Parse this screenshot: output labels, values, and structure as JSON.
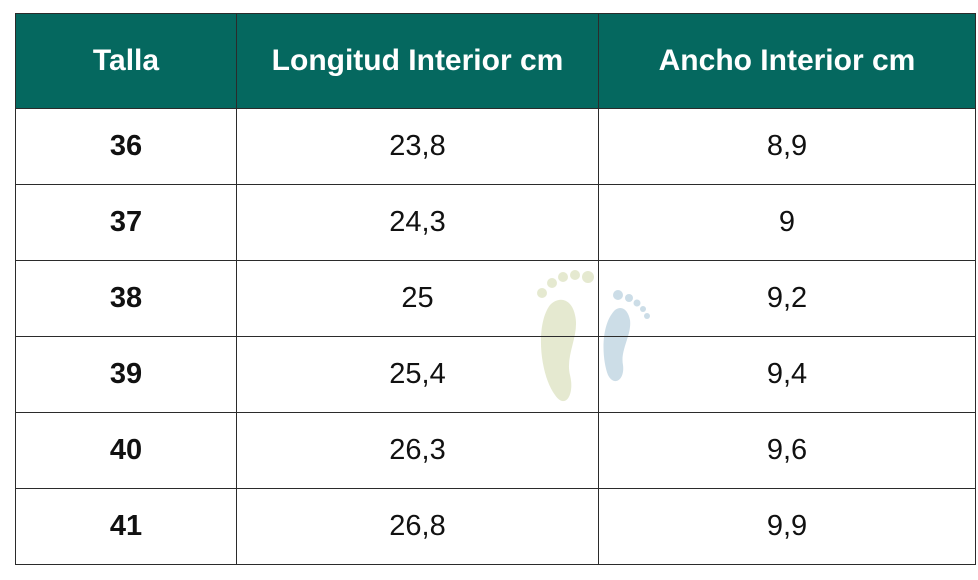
{
  "table": {
    "header": [
      "Talla",
      "Longitud Interior cm",
      "Ancho Interior cm"
    ],
    "rows": [
      [
        "36",
        "23,8",
        "8,9"
      ],
      [
        "37",
        "24,3",
        "9"
      ],
      [
        "38",
        "25",
        "9,2"
      ],
      [
        "39",
        "25,4",
        "9,4"
      ],
      [
        "40",
        "26,3",
        "9,6"
      ],
      [
        "41",
        "26,8",
        "9,9"
      ]
    ]
  }
}
